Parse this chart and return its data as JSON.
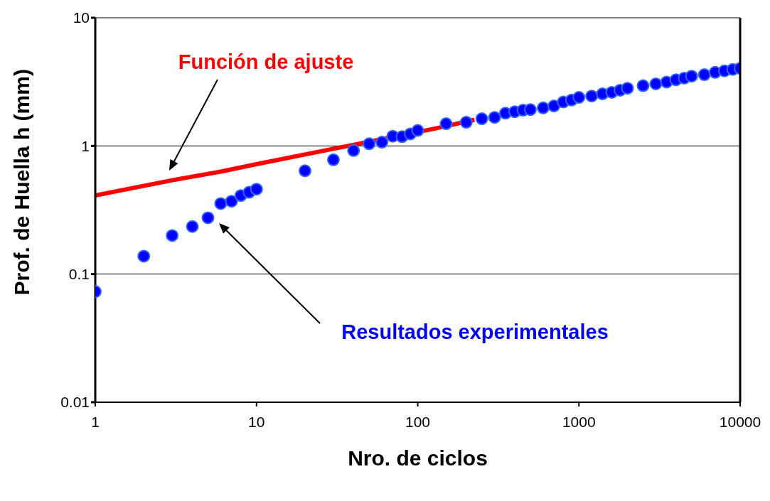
{
  "chart_data": {
    "type": "scatter",
    "xlabel": "Nro. de ciclos",
    "ylabel": "Prof. de Huella h (mm)",
    "log": "xy",
    "xlim": [
      1,
      10000
    ],
    "ylim": [
      0.01,
      10
    ],
    "xticks": [
      1,
      10,
      100,
      1000,
      10000
    ],
    "yticks": [
      0.01,
      0.1,
      1,
      10
    ],
    "grid": "y",
    "legend": false,
    "series": [
      {
        "name": "Función de ajuste",
        "type": "line",
        "color": "#ff0000",
        "marker": "none",
        "line_style": "solid",
        "x": [
          1,
          3,
          6,
          10,
          30,
          130,
          225
        ],
        "values": [
          0.41,
          0.54,
          0.63,
          0.72,
          0.95,
          1.37,
          1.6
        ]
      },
      {
        "name": "Resultados experimentales",
        "color": "#0000ff",
        "marker": "circle",
        "x": [
          1,
          2,
          3,
          4,
          5,
          6,
          7,
          8,
          9,
          10,
          20,
          30,
          40,
          50,
          60,
          70,
          80,
          90,
          100,
          150,
          200,
          250,
          300,
          350,
          400,
          450,
          500,
          600,
          700,
          800,
          900,
          1000,
          1200,
          1400,
          1600,
          1800,
          2000,
          2500,
          3000,
          3500,
          4000,
          4500,
          5000,
          6000,
          7000,
          8000,
          9000,
          10000
        ],
        "values": [
          0.073,
          0.138,
          0.2,
          0.235,
          0.275,
          0.355,
          0.37,
          0.41,
          0.435,
          0.46,
          0.64,
          0.78,
          0.92,
          1.04,
          1.07,
          1.19,
          1.18,
          1.24,
          1.32,
          1.49,
          1.53,
          1.63,
          1.67,
          1.8,
          1.85,
          1.9,
          1.92,
          1.98,
          2.05,
          2.2,
          2.28,
          2.39,
          2.45,
          2.55,
          2.62,
          2.72,
          2.82,
          2.95,
          3.05,
          3.15,
          3.28,
          3.38,
          3.5,
          3.6,
          3.75,
          3.85,
          3.95,
          4.03
        ]
      }
    ]
  }
}
